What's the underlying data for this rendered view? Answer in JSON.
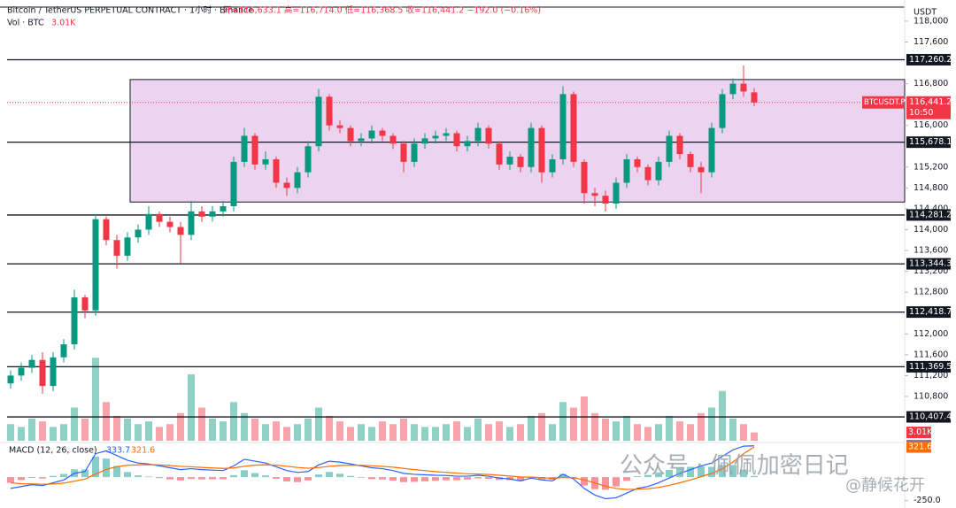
{
  "chart_data": {
    "type": "candlestick",
    "title": "Bitcoin / TetherUS PERPETUAL CONTRACT · 1小时 · Binance",
    "ohlc_text": "开=116,633.1 高=116,714.0 低=116,368.5 收=116,441.2 −192.0 (−0.16%)",
    "unit": "USDT",
    "ylim": [
      109950,
      118270
    ],
    "yticks": [
      {
        "value": 118000,
        "label": "118,000"
      },
      {
        "value": 117600,
        "label": "117,600"
      },
      {
        "value": 116800,
        "label": "116,800"
      },
      {
        "value": 116000,
        "label": "116,000"
      },
      {
        "value": 115200,
        "label": "115,200"
      },
      {
        "value": 114800,
        "label": "114,800"
      },
      {
        "value": 114400,
        "label": "114,400"
      },
      {
        "value": 114000,
        "label": "114,000"
      },
      {
        "value": 113600,
        "label": "113,600"
      },
      {
        "value": 113200,
        "label": "113,200"
      },
      {
        "value": 112800,
        "label": "112,800"
      },
      {
        "value": 112000,
        "label": "112,000"
      },
      {
        "value": 111600,
        "label": "111,600"
      },
      {
        "value": 111200,
        "label": "111,200"
      },
      {
        "value": 110800,
        "label": "110,800"
      }
    ],
    "up_color": "#089981",
    "down_color": "#f23645",
    "open": [
      111050,
      111200,
      111350,
      111500,
      111000,
      111550,
      111800,
      112700,
      112450,
      114200,
      113800,
      113500,
      113850,
      114000,
      114300,
      114150,
      114050,
      113900,
      114350,
      114250,
      114350,
      114450,
      115300,
      115800,
      115250,
      115350,
      114900,
      114800,
      115100,
      115600,
      116550,
      116000,
      115950,
      115700,
      115750,
      115900,
      115800,
      115650,
      115300,
      115650,
      115750,
      115800,
      115850,
      115600,
      115700,
      115950,
      115650,
      115250,
      115400,
      115200,
      115950,
      115100,
      115350,
      116600,
      115300,
      114700,
      114650,
      114500,
      114900,
      115350,
      115200,
      114950,
      115300,
      115800,
      115450,
      115200,
      115100,
      115950,
      116600,
      116800,
      116633.1
    ],
    "high": [
      111300,
      111450,
      111600,
      111650,
      111650,
      111900,
      112850,
      112750,
      114300,
      114250,
      113900,
      113950,
      114100,
      114450,
      114350,
      114250,
      114150,
      114550,
      114450,
      114450,
      114550,
      115400,
      115950,
      115850,
      115500,
      115400,
      115000,
      115200,
      115700,
      116700,
      116600,
      116100,
      116000,
      115850,
      116000,
      115950,
      115850,
      115700,
      115750,
      115850,
      115900,
      115950,
      115900,
      115800,
      116050,
      116000,
      115700,
      115500,
      115450,
      116050,
      116000,
      115450,
      116750,
      116650,
      115350,
      114800,
      114750,
      115000,
      115450,
      115400,
      115250,
      115400,
      115900,
      115850,
      115500,
      115300,
      116050,
      116700,
      116900,
      117150,
      116714
    ],
    "low": [
      110950,
      111100,
      111250,
      110850,
      110900,
      111450,
      111700,
      112300,
      112350,
      113700,
      113250,
      113400,
      113750,
      113900,
      114050,
      113950,
      113350,
      113800,
      114150,
      114150,
      114250,
      114350,
      115200,
      115150,
      115150,
      114800,
      114650,
      114700,
      115000,
      115500,
      115900,
      115850,
      115600,
      115600,
      115650,
      115700,
      115550,
      115100,
      115200,
      115550,
      115650,
      115700,
      115500,
      115500,
      115600,
      115550,
      115150,
      115150,
      115100,
      115100,
      114900,
      115000,
      115250,
      115200,
      114500,
      114450,
      114350,
      114400,
      114800,
      115100,
      114850,
      114850,
      115200,
      115350,
      115100,
      114700,
      115000,
      115850,
      116500,
      116550,
      116368.5
    ],
    "close": [
      111200,
      111350,
      111500,
      111000,
      111550,
      111800,
      112700,
      112450,
      114200,
      113800,
      113500,
      113850,
      114000,
      114300,
      114150,
      114050,
      113900,
      114350,
      114250,
      114350,
      114450,
      115300,
      115800,
      115250,
      115350,
      114900,
      114800,
      115100,
      115600,
      116550,
      116000,
      115950,
      115700,
      115750,
      115900,
      115800,
      115650,
      115300,
      115650,
      115750,
      115800,
      115850,
      115600,
      115700,
      115950,
      115650,
      115250,
      115400,
      115200,
      115950,
      115100,
      115350,
      116600,
      115300,
      114700,
      114650,
      114500,
      114900,
      115350,
      115200,
      114950,
      115300,
      115800,
      115450,
      115200,
      115100,
      115950,
      116600,
      116800,
      116650,
      116441.2
    ],
    "last_price_label": "116,441.2",
    "countdown": "10:50",
    "symbol_tag": "BTCUSDT.P",
    "zone": {
      "low": 114530,
      "high": 116880,
      "color": "#ecd3f0"
    },
    "levels": [
      {
        "value": 117260.2,
        "label": "117,260.2"
      },
      {
        "value": 115678.1,
        "label": "115,678.1"
      },
      {
        "value": 114281.2,
        "label": "114,281.2"
      },
      {
        "value": 113344.3,
        "label": "113,344.3"
      },
      {
        "value": 112418.7,
        "label": "112,418.7"
      },
      {
        "value": 111369.5,
        "label": "111,369.5"
      },
      {
        "value": 110407.4,
        "label": "110,407.4"
      }
    ],
    "volume": {
      "title": "Vol · BTC",
      "ylim": [
        0,
        32
      ],
      "values": [
        6,
        5,
        8,
        7,
        5,
        6,
        12,
        8,
        30,
        14,
        9,
        8,
        6,
        7,
        5,
        6,
        10,
        24,
        12,
        8,
        7,
        14,
        10,
        8,
        6,
        7,
        5,
        6,
        8,
        12,
        9,
        7,
        5,
        6,
        5,
        7,
        6,
        8,
        6,
        5,
        5,
        6,
        7,
        5,
        8,
        6,
        7,
        5,
        6,
        9,
        10,
        6,
        14,
        12,
        16,
        10,
        8,
        7,
        9,
        6,
        5,
        6,
        9,
        7,
        6,
        10,
        12,
        18,
        8,
        6,
        3.01
      ],
      "last_label": "3.01K"
    },
    "macd": {
      "title": "MACD (12, 26, close)",
      "ylim": [
        -310,
        350
      ],
      "yticks": [
        {
          "value": -250,
          "label": "-250.0"
        }
      ],
      "macd": {
        "color": "#2962ff",
        "values": [
          -120,
          -100,
          -80,
          -90,
          -60,
          -30,
          40,
          60,
          250,
          280,
          230,
          180,
          150,
          140,
          120,
          100,
          80,
          90,
          80,
          75,
          70,
          120,
          190,
          170,
          150,
          110,
          70,
          50,
          60,
          130,
          170,
          160,
          140,
          120,
          100,
          90,
          70,
          40,
          30,
          25,
          20,
          18,
          10,
          10,
          20,
          10,
          -10,
          -20,
          -40,
          -10,
          -30,
          -40,
          30,
          -20,
          -120,
          -190,
          -230,
          -220,
          -170,
          -120,
          -100,
          -60,
          -10,
          40,
          80,
          120,
          150,
          220,
          290,
          330,
          333.7
        ]
      },
      "signal": {
        "color": "#ff6d00",
        "values": [
          -60,
          -70,
          -72,
          -76,
          -73,
          -64,
          -43,
          -22,
          32,
          82,
          112,
          126,
          131,
          133,
          130,
          124,
          115,
          110,
          104,
          98,
          93,
          98,
          116,
          127,
          132,
          127,
          116,
          103,
          95,
          102,
          115,
          124,
          127,
          126,
          121,
          115,
          106,
          93,
          80,
          69,
          59,
          51,
          43,
          36,
          33,
          28,
          20,
          12,
          2,
          0,
          -6,
          -13,
          -4,
          -7,
          -30,
          -62,
          -96,
          -121,
          -131,
          -129,
          -123,
          -110,
          -88,
          -60,
          -30,
          5,
          40,
          90,
          160,
          250,
          321.6
        ]
      },
      "histogram": [
        -60,
        -30,
        -8,
        -14,
        13,
        34,
        83,
        82,
        218,
        198,
        118,
        54,
        19,
        7,
        -10,
        -24,
        -35,
        -20,
        -24,
        -23,
        -23,
        22,
        74,
        43,
        18,
        -17,
        -46,
        -53,
        -35,
        28,
        55,
        36,
        13,
        -6,
        -21,
        -25,
        -36,
        -53,
        -50,
        -44,
        -39,
        -33,
        -33,
        -26,
        -13,
        -18,
        -30,
        -32,
        -42,
        -10,
        -24,
        -27,
        34,
        -13,
        -90,
        -128,
        -134,
        -99,
        -39,
        9,
        23,
        50,
        78,
        100,
        110,
        115,
        110,
        130,
        130,
        80,
        12.1
      ]
    }
  },
  "watermark": {
    "line1": "公众号 · 佩佩加密日记",
    "line2": "@静候花开"
  }
}
